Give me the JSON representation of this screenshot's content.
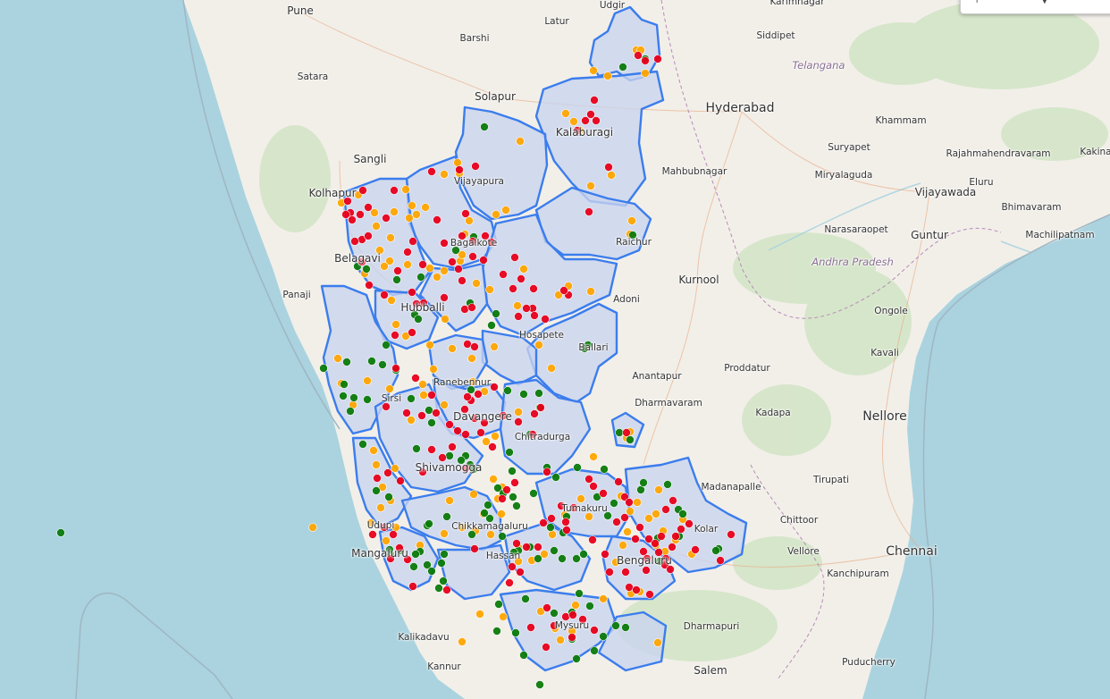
{
  "map": {
    "land_color": "#f2efe9",
    "sea_color": "#aad3df",
    "region_fill": "#c9d3ee",
    "region_border": "#3b7ded"
  },
  "labels": [
    {
      "key": "pune",
      "text": "Pune",
      "cls": "city-md"
    },
    {
      "key": "barshi",
      "text": "Barshi",
      "cls": "city-sm"
    },
    {
      "key": "latur",
      "text": "Latur",
      "cls": "city-sm"
    },
    {
      "key": "udgir",
      "text": "Udgir",
      "cls": "city-sm"
    },
    {
      "key": "karimnagar",
      "text": "Karimnagar",
      "cls": "city-sm"
    },
    {
      "key": "siddipet",
      "text": "Siddipet",
      "cls": "city-sm"
    },
    {
      "key": "telangana",
      "text": "Telangana",
      "cls": "state"
    },
    {
      "key": "satara",
      "text": "Satara",
      "cls": "city-sm"
    },
    {
      "key": "solapur",
      "text": "Solapur",
      "cls": "city-md"
    },
    {
      "key": "hyderabad",
      "text": "Hyderabad",
      "cls": "city-lg"
    },
    {
      "key": "khammam",
      "text": "Khammam",
      "cls": "city-sm"
    },
    {
      "key": "kalaburagi",
      "text": "Kalaburagi",
      "cls": "city-md"
    },
    {
      "key": "suryapet",
      "text": "Suryapet",
      "cls": "city-sm"
    },
    {
      "key": "rajahmundry",
      "text": "Rajahmahendravaram",
      "cls": "city-sm"
    },
    {
      "key": "kakinada",
      "text": "Kakina",
      "cls": "city-sm"
    },
    {
      "key": "sangli",
      "text": "Sangli",
      "cls": "city-md"
    },
    {
      "key": "mahbubnagar",
      "text": "Mahbubnagar",
      "cls": "city-sm"
    },
    {
      "key": "miryalaguda",
      "text": "Miryalaguda",
      "cls": "city-sm"
    },
    {
      "key": "eluru",
      "text": "Eluru",
      "cls": "city-sm"
    },
    {
      "key": "vijayapura",
      "text": "Vijayapura",
      "cls": "city-sm"
    },
    {
      "key": "kolhapur",
      "text": "Kolhapur",
      "cls": "city-md"
    },
    {
      "key": "vijayawada",
      "text": "Vijayawada",
      "cls": "city-md"
    },
    {
      "key": "bhimavaram",
      "text": "Bhimavaram",
      "cls": "city-sm"
    },
    {
      "key": "bagalkote",
      "text": "Bagalkote",
      "cls": "city-sm"
    },
    {
      "key": "narasaraopet",
      "text": "Narasaraopet",
      "cls": "city-sm"
    },
    {
      "key": "guntur",
      "text": "Guntur",
      "cls": "city-md"
    },
    {
      "key": "machilipatnam",
      "text": "Machilipatnam",
      "cls": "city-sm"
    },
    {
      "key": "raichur",
      "text": "Raichur",
      "cls": "city-sm"
    },
    {
      "key": "belagavi",
      "text": "Belagavi",
      "cls": "city-md"
    },
    {
      "key": "andhra",
      "text": "Andhra Pradesh",
      "cls": "state"
    },
    {
      "key": "kurnool",
      "text": "Kurnool",
      "cls": "city-md"
    },
    {
      "key": "panaji",
      "text": "Panaji",
      "cls": "city-sm"
    },
    {
      "key": "hubballi",
      "text": "Hubballi",
      "cls": "city-md"
    },
    {
      "key": "adoni",
      "text": "Adoni",
      "cls": "city-sm"
    },
    {
      "key": "ongole",
      "text": "Ongole",
      "cls": "city-sm"
    },
    {
      "key": "hosapete",
      "text": "Hosapete",
      "cls": "city-sm"
    },
    {
      "key": "ballari",
      "text": "Ballari",
      "cls": "city-sm"
    },
    {
      "key": "kavali",
      "text": "Kavali",
      "cls": "city-sm"
    },
    {
      "key": "proddatur",
      "text": "Proddatur",
      "cls": "city-sm"
    },
    {
      "key": "anantapur",
      "text": "Anantapur",
      "cls": "city-sm"
    },
    {
      "key": "sirsi",
      "text": "Sirsi",
      "cls": "city-sm"
    },
    {
      "key": "ranebennur",
      "text": "Ranebennur",
      "cls": "city-sm"
    },
    {
      "key": "dharmavaram",
      "text": "Dharmavaram",
      "cls": "city-sm"
    },
    {
      "key": "kadapa",
      "text": "Kadapa",
      "cls": "city-sm"
    },
    {
      "key": "davangere",
      "text": "Davangere",
      "cls": "city-md"
    },
    {
      "key": "nellore",
      "text": "Nellore",
      "cls": "city-lg"
    },
    {
      "key": "chitradurga",
      "text": "Chitradurga",
      "cls": "city-sm"
    },
    {
      "key": "shivamogga",
      "text": "Shivamogga",
      "cls": "city-md"
    },
    {
      "key": "tirupati",
      "text": "Tirupati",
      "cls": "city-sm"
    },
    {
      "key": "madanapalle",
      "text": "Madanapalle",
      "cls": "city-sm"
    },
    {
      "key": "tumakuru",
      "text": "Tumakuru",
      "cls": "city-sm"
    },
    {
      "key": "chittoor",
      "text": "Chittoor",
      "cls": "city-sm"
    },
    {
      "key": "udupi",
      "text": "Udupi",
      "cls": "city-sm"
    },
    {
      "key": "chikkamagaluru",
      "text": "Chikkamagaluru",
      "cls": "city-sm"
    },
    {
      "key": "kolar",
      "text": "Kolar",
      "cls": "city-sm"
    },
    {
      "key": "vellore",
      "text": "Vellore",
      "cls": "city-sm"
    },
    {
      "key": "chennai",
      "text": "Chennai",
      "cls": "city-lg"
    },
    {
      "key": "mangaluru",
      "text": "Mangaluru",
      "cls": "city-md"
    },
    {
      "key": "hassan",
      "text": "Hassan",
      "cls": "city-sm"
    },
    {
      "key": "bengaluru",
      "text": "Bengaluru",
      "cls": "city-md"
    },
    {
      "key": "kanchipuram",
      "text": "Kanchipuram",
      "cls": "city-sm"
    },
    {
      "key": "dharmapuri",
      "text": "Dharmapuri",
      "cls": "city-sm"
    },
    {
      "key": "kalikadavu",
      "text": "Kalikadavu",
      "cls": "city-sm"
    },
    {
      "key": "mysuru",
      "text": "Mysuru",
      "cls": "city-sm"
    },
    {
      "key": "puducherry",
      "text": "Puducherry",
      "cls": "city-sm"
    },
    {
      "key": "kannur",
      "text": "Kannur",
      "cls": "city-sm"
    },
    {
      "key": "salem",
      "text": "Salem",
      "cls": "city-md"
    }
  ],
  "legend_colors": {
    "red": "#e8001b",
    "orange": "#ffa500",
    "green": "#0b7a0b"
  }
}
